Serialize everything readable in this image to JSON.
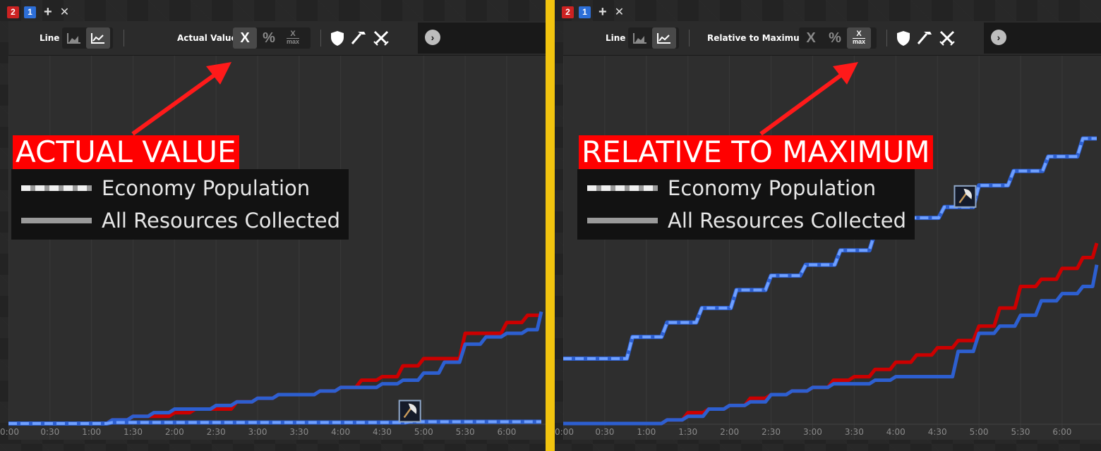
{
  "tabs": {
    "player_red": "2",
    "player_blue": "1"
  },
  "panels": [
    {
      "toolbar": {
        "line_label": "Line",
        "mode_label": "Actual Value",
        "btn_x": "X",
        "btn_pct": "%",
        "frac_num": "X",
        "frac_den": "max"
      },
      "callout": "ACTUAL VALUE",
      "legend": {
        "dashed_label": "Economy Population",
        "solid_label": "All Resources Collected"
      }
    },
    {
      "toolbar": {
        "line_label": "Line",
        "mode_label": "Relative to Maximum",
        "btn_x": "X",
        "btn_pct": "%",
        "frac_num": "X",
        "frac_den": "max"
      },
      "callout": "RELATIVE TO MAXIMUM",
      "legend": {
        "dashed_label": "Economy Population",
        "solid_label": "All Resources Collected"
      }
    }
  ],
  "colors": {
    "red_player": "#cc0000",
    "blue_player": "#2d5fd0",
    "blue_light": "#6fa0ff",
    "callout": "#ff0000",
    "divider": "#f2c40f"
  },
  "icons": [
    "shield-icon",
    "hammer-icon",
    "crossed-swords-icon",
    "next-icon",
    "axe-icon",
    "area-chart-icon",
    "line-chart-icon"
  ],
  "chart_data": [
    {
      "type": "line",
      "mode": "actual",
      "xlabel": "",
      "ylabel": "",
      "x_ticks": [
        "0:00",
        "0:30",
        "1:00",
        "1:30",
        "2:00",
        "2:30",
        "3:00",
        "3:30",
        "4:00",
        "4:30",
        "5:00",
        "5:30",
        "6:00"
      ],
      "x_range": [
        0,
        385
      ],
      "y_range": [
        0,
        100
      ],
      "grid": true,
      "legend_position": "top-left",
      "series": [
        {
          "player": "2",
          "metric": "All Resources Collected",
          "style": "solid",
          "color": "#cc0000",
          "x": [
            0,
            60,
            75,
            90,
            105,
            120,
            135,
            150,
            165,
            180,
            195,
            210,
            225,
            240,
            255,
            270,
            285,
            300,
            315,
            330,
            345,
            360,
            375,
            385
          ],
          "y": [
            0,
            0,
            1,
            2,
            2,
            3,
            4,
            4,
            6,
            7,
            8,
            8,
            9,
            10,
            12,
            13,
            16,
            18,
            18,
            25,
            25,
            28,
            30,
            30
          ]
        },
        {
          "player": "1",
          "metric": "All Resources Collected",
          "style": "solid",
          "color": "#2d5fd0",
          "x": [
            0,
            60,
            75,
            90,
            105,
            120,
            135,
            150,
            165,
            180,
            195,
            210,
            225,
            240,
            255,
            270,
            285,
            300,
            315,
            330,
            345,
            360,
            375,
            385
          ],
          "y": [
            0,
            0,
            1,
            2,
            3,
            4,
            4,
            5,
            6,
            7,
            8,
            8,
            9,
            10,
            10,
            11,
            12,
            14,
            17,
            22,
            24,
            25,
            26,
            31
          ]
        },
        {
          "player": "1",
          "metric": "Economy Population",
          "style": "dashed",
          "color": "#6fa0ff",
          "x": [
            0,
            60,
            75,
            280,
            290,
            385
          ],
          "y": [
            0,
            0,
            0.3,
            0.3,
            0.5,
            0.5
          ]
        }
      ],
      "events": [
        {
          "icon": "axe-icon",
          "x": 290
        }
      ]
    },
    {
      "type": "line",
      "mode": "relative-to-maximum",
      "xlabel": "",
      "ylabel": "",
      "x_ticks": [
        "0:00",
        "0:30",
        "1:00",
        "1:30",
        "2:00",
        "2:30",
        "3:00",
        "3:30",
        "4:00",
        "4:30",
        "5:00",
        "5:30",
        "6:00"
      ],
      "x_range": [
        0,
        385
      ],
      "y_range": [
        0,
        100
      ],
      "grid": true,
      "legend_position": "top-left",
      "series": [
        {
          "player": "2",
          "metric": "All Resources Collected",
          "style": "solid",
          "color": "#cc0000",
          "x": [
            0,
            60,
            75,
            90,
            105,
            120,
            135,
            150,
            165,
            180,
            195,
            210,
            225,
            240,
            255,
            270,
            285,
            300,
            315,
            330,
            345,
            360,
            375,
            385
          ],
          "y": [
            0,
            0,
            1,
            3,
            4,
            5,
            7,
            8,
            9,
            10,
            12,
            13,
            15,
            17,
            19,
            21,
            23,
            27,
            32,
            38,
            40,
            43,
            46,
            50
          ]
        },
        {
          "player": "1",
          "metric": "All Resources Collected",
          "style": "solid",
          "color": "#2d5fd0",
          "x": [
            0,
            60,
            75,
            90,
            105,
            120,
            135,
            150,
            165,
            180,
            195,
            210,
            225,
            240,
            255,
            270,
            285,
            300,
            315,
            330,
            345,
            360,
            375,
            385
          ],
          "y": [
            0,
            0,
            1,
            2,
            4,
            5,
            6,
            8,
            9,
            10,
            11,
            11,
            12,
            13,
            13,
            13,
            20,
            25,
            27,
            30,
            34,
            36,
            38,
            44
          ]
        },
        {
          "player": "1",
          "metric": "Economy Population",
          "style": "dashed",
          "color": "#6fa0ff",
          "x": [
            0,
            25,
            50,
            75,
            100,
            125,
            150,
            175,
            200,
            225,
            250,
            275,
            300,
            325,
            350,
            375,
            385
          ],
          "y": [
            18,
            18,
            24,
            28,
            32,
            37,
            41,
            44,
            48,
            53,
            57,
            60,
            66,
            70,
            74,
            79,
            79
          ]
        }
      ],
      "events": [
        {
          "icon": "axe-icon",
          "x": 290
        }
      ]
    }
  ]
}
